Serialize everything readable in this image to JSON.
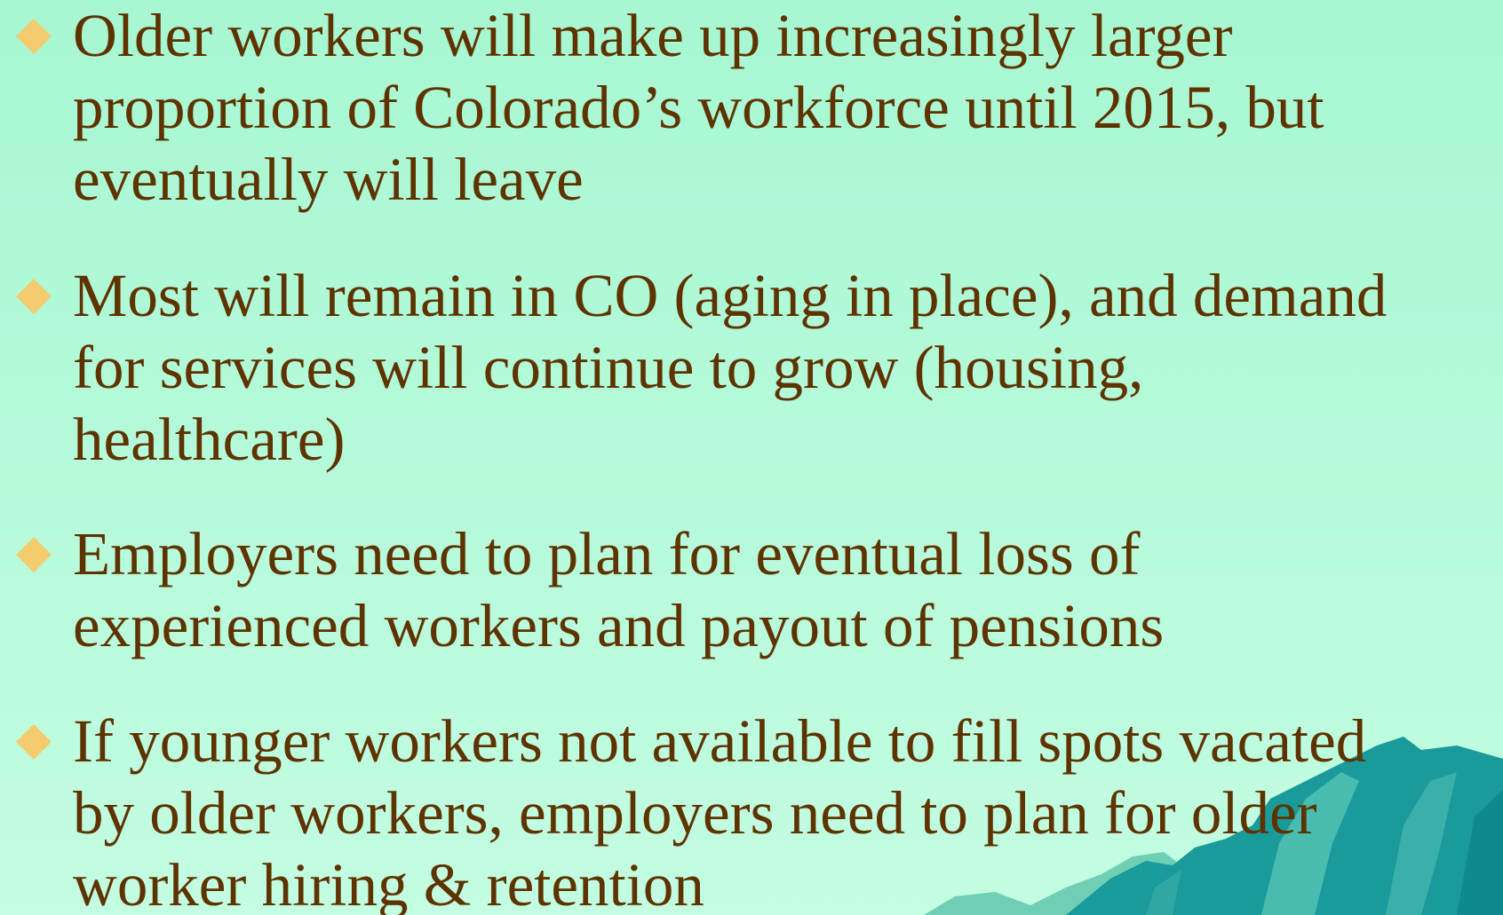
{
  "bullets": [
    {
      "lines": [
        "Older workers will make up increasingly larger",
        "proportion of Colorado’s workforce until 2015, but",
        "eventually will leave"
      ]
    },
    {
      "lines": [
        "Most will remain in CO (aging in place), and demand",
        "for services will continue to grow (housing,",
        "healthcare)"
      ]
    },
    {
      "lines": [
        "Employers need to plan for eventual loss of",
        "experienced workers and payout of pensions"
      ]
    },
    {
      "lines": [
        "If younger workers not available to fill spots vacated",
        "by older workers, employers need to plan for older",
        "worker hiring & retention"
      ]
    }
  ]
}
